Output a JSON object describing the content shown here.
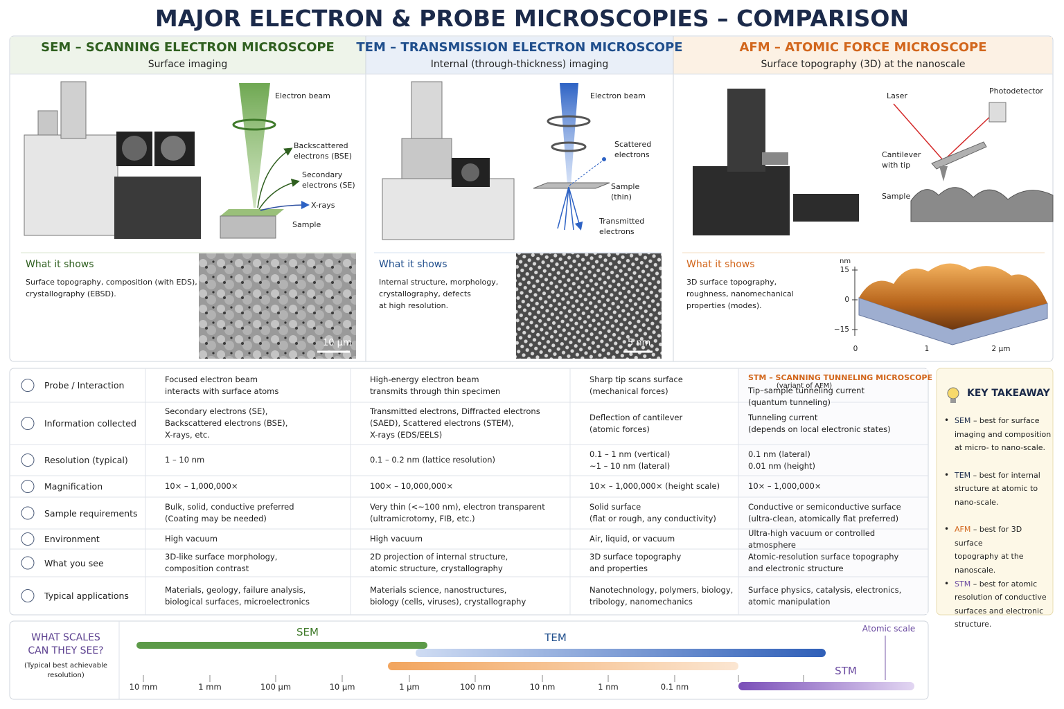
{
  "title": "MAJOR ELECTRON & PROBE MICROSCOPIES – COMPARISON",
  "panels": [
    {
      "heading": "SEM – SCANNING ELECTRON MICROSCOPE",
      "subtitle": "Surface imaging",
      "labels": [
        "Electron beam",
        "Backscattered\nelectrons (BSE)",
        "Secondary\nelectrons (SE)",
        "X-rays",
        "Sample"
      ],
      "shows_heading": "What it shows",
      "shows_text": "Surface topography, composition (with EDS),\ncrystallography (EBSD).",
      "scale_bar": "10 µm"
    },
    {
      "heading": "TEM – TRANSMISSION ELECTRON MICROSCOPE",
      "subtitle": "Internal (through-thickness) imaging",
      "labels": [
        "Electron beam",
        "Scattered\nelectrons",
        "Sample\n(thin)",
        "Transmitted\nelectrons"
      ],
      "shows_heading": "What it shows",
      "shows_text": "Internal structure, morphology,\ncrystallography, defects\nat high resolution.",
      "scale_bar": "5 nm"
    },
    {
      "heading": "AFM – ATOMIC FORCE MICROSCOPE",
      "subtitle": "Surface topography (3D) at the nanoscale",
      "labels": [
        "Laser",
        "Photodetector",
        "Cantilever\nwith tip",
        "Sample"
      ],
      "shows_heading": "What it shows",
      "shows_text": "3D surface topography,\nroughness, nanomechanical\nproperties (modes).",
      "plot_unit": "nm",
      "plot_y_labels": [
        "15",
        "0",
        "−15"
      ],
      "plot_x_labels": [
        "0",
        "1",
        "2 µm"
      ]
    }
  ],
  "stm": {
    "heading": "STM – SCANNING TUNNELING MICROSCOPE",
    "note": "(variant of AFM)"
  },
  "table": {
    "rows": [
      {
        "label": "Probe / Interaction",
        "cells": [
          "Focused electron beam\ninteracts with surface atoms",
          "High-energy electron beam\ntransmits through thin specimen",
          "Sharp tip scans surface\n(mechanical forces)",
          "Tip–sample tunneling current\n(quantum tunneling)"
        ]
      },
      {
        "label": "Information collected",
        "cells": [
          "Secondary electrons (SE),\nBackscattered electrons (BSE),\nX-rays, etc.",
          "Transmitted electrons, Diffracted electrons\n(SAED), Scattered electrons (STEM),\nX-rays (EDS/EELS)",
          "Deflection of cantilever\n(atomic forces)",
          "Tunneling current\n(depends on local electronic states)"
        ]
      },
      {
        "label": "Resolution (typical)",
        "cells": [
          "1 – 10 nm",
          "0.1 – 0.2 nm (lattice resolution)",
          "0.1 – 1 nm (vertical)\n~1 – 10 nm (lateral)",
          "0.1 nm (lateral)\n0.01 nm (height)"
        ]
      },
      {
        "label": "Magnification",
        "cells": [
          "10× – 1,000,000×",
          "100× – 10,000,000×",
          "10× – 1,000,000× (height scale)",
          "10× – 1,000,000×"
        ]
      },
      {
        "label": "Sample requirements",
        "cells": [
          "Bulk, solid, conductive preferred\n(Coating may be needed)",
          "Very thin (<~100 nm), electron transparent\n(ultramicrotomy, FIB, etc.)",
          "Solid surface\n(flat or rough, any conductivity)",
          "Conductive or semiconductive surface\n(ultra-clean, atomically flat preferred)"
        ]
      },
      {
        "label": "Environment",
        "cells": [
          "High vacuum",
          "High vacuum",
          "Air, liquid, or vacuum",
          "Ultra-high vacuum or controlled atmosphere"
        ]
      },
      {
        "label": "What you see",
        "cells": [
          "3D-like surface morphology,\ncomposition contrast",
          "2D projection of internal structure,\natomic structure, crystallography",
          "3D surface topography\nand properties",
          "Atomic-resolution surface topography\nand electronic structure"
        ]
      },
      {
        "label": "Typical applications",
        "cells": [
          "Materials, geology, failure analysis,\nbiological surfaces, microelectronics",
          "Materials science, nanostructures,\nbiology (cells, viruses), crystallography",
          "Nanotechnology, polymers, biology,\ntribology, nanomechanics",
          "Surface physics, catalysis, electronics,\natomic manipulation"
        ]
      }
    ]
  },
  "takeaway": {
    "title": "KEY TAKEAWAY",
    "items": [
      {
        "name": "SEM",
        "text": "– best for surface\nimaging and composition\nat micro- to nano-scale."
      },
      {
        "name": "TEM",
        "text": "– best for internal\nstructure at atomic to\nnano-scale."
      },
      {
        "name": "AFM",
        "text": "– best for 3D surface\ntopography at the\nnanoscale."
      },
      {
        "name": "STM",
        "text": "– best for atomic\nresolution of conductive\nsurfaces and electronic\nstructure."
      }
    ]
  },
  "scales": {
    "title": "WHAT SCALES\nCAN THEY SEE?",
    "note": "(Typical best achievable\nresolution)",
    "ticks": [
      "10 mm",
      "1 mm",
      "100 µm",
      "10 µm",
      "1 µm",
      "100 nm",
      "10 nm",
      "1 nm",
      "0.1 nm"
    ],
    "bars": [
      "SEM",
      "TEM",
      "STM"
    ],
    "marker": "Atomic scale"
  }
}
